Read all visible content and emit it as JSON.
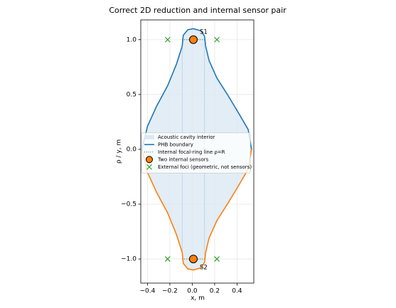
{
  "chart_data": {
    "type": "line",
    "title": "Correct 2D reduction and internal sensor pair",
    "xlabel": "x, m",
    "ylabel": "ρ / y, m",
    "xlim": [
      -0.46,
      0.55
    ],
    "ylim": [
      -1.22,
      1.18
    ],
    "xticks": [
      {
        "value": -0.4,
        "label": "−0.4"
      },
      {
        "value": -0.2,
        "label": "−0.2"
      },
      {
        "value": 0,
        "label": "0.0"
      },
      0.2,
      0.4
    ],
    "yticks": [
      {
        "value": -1.0,
        "label": "−1.0"
      },
      {
        "value": -0.5,
        "label": "−0.5"
      },
      {
        "value": 0,
        "label": "0.0"
      },
      0.5,
      {
        "value": 1.0,
        "label": "1.0"
      }
    ],
    "grid": true,
    "legend": "center",
    "fill": {
      "name": "Acoustic cavity interior",
      "color": "#dbe8f4"
    },
    "series": [
      {
        "name": "PHB boundary",
        "color": "#1f77b4",
        "x": [
          -0.45,
          -0.4,
          -0.32,
          -0.22,
          -0.14,
          -0.09,
          -0.08,
          -0.04,
          0.01,
          0.08,
          0.11,
          0.12,
          0.15,
          0.22,
          0.32,
          0.42,
          0.5,
          0.53
        ],
        "values": [
          0.0,
          0.21,
          0.39,
          0.58,
          0.78,
          0.94,
          1.04,
          1.09,
          1.1,
          1.08,
          1.03,
          0.94,
          0.81,
          0.65,
          0.49,
          0.32,
          0.18,
          0.0
        ]
      },
      {
        "color": "#ff7f0e",
        "x": [
          -0.45,
          -0.4,
          -0.32,
          -0.22,
          -0.14,
          -0.09,
          -0.08,
          -0.04,
          0.01,
          0.08,
          0.11,
          0.12,
          0.15,
          0.22,
          0.32,
          0.42,
          0.5,
          0.53
        ],
        "values": [
          0.0,
          -0.21,
          -0.39,
          -0.58,
          -0.78,
          -0.94,
          -1.04,
          -1.09,
          -1.1,
          -1.08,
          -1.03,
          -0.94,
          -0.81,
          -0.65,
          -0.49,
          -0.32,
          -0.18,
          0.0
        ]
      }
    ],
    "focal_lines": {
      "name": "Internal focal-ring line ρ=R",
      "color": "#2e6b3a",
      "x": [
        -0.09,
        0.11
      ],
      "y": [
        1.0,
        -1.0
      ]
    },
    "sensors": {
      "name": "Two internal sensors",
      "color": "#ff7f0e",
      "x": [
        0.01,
        0.01
      ],
      "y": [
        1.0,
        -1.0
      ],
      "labels": [
        "S1",
        "S2"
      ]
    },
    "foci": {
      "name": "External foci (geometric, not sensors)",
      "color": "#2ca02c",
      "x": [
        -0.22,
        0.22,
        -0.22,
        0.22
      ],
      "y": [
        1.0,
        1.0,
        -1.0,
        -1.0
      ]
    }
  }
}
